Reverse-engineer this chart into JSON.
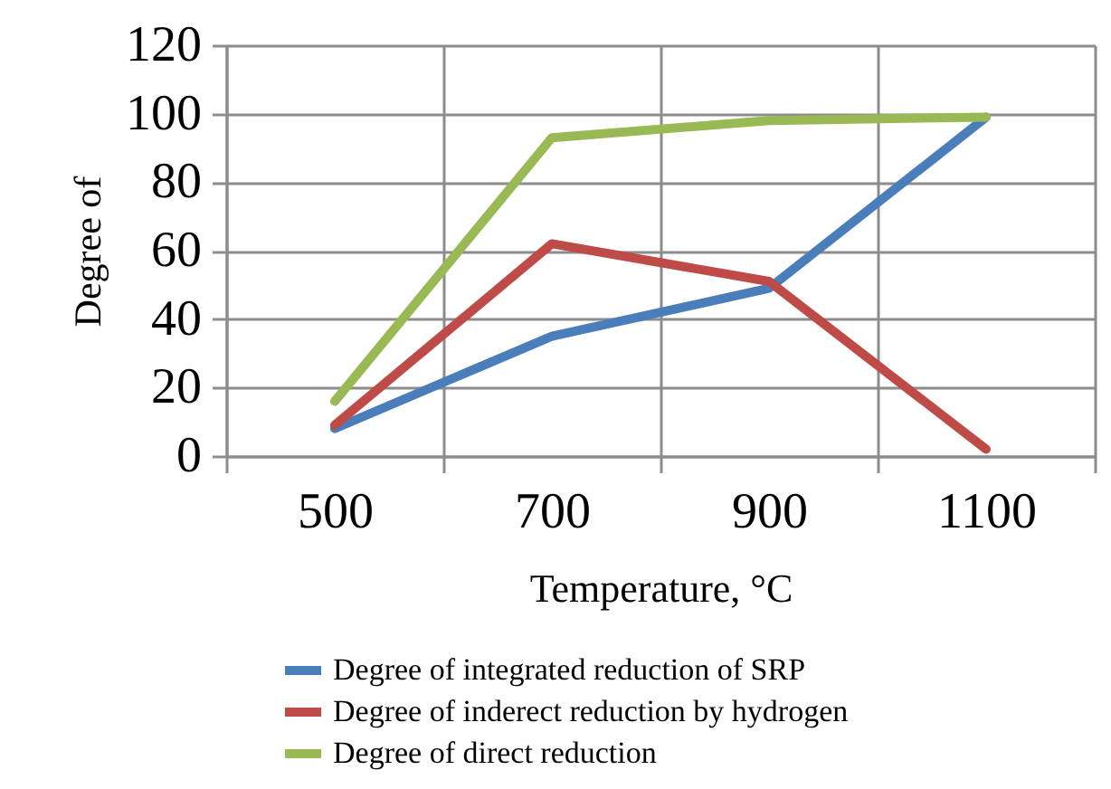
{
  "chart_data": {
    "type": "line",
    "xlabel": "Temperature, °C",
    "ylabel": "Degree of",
    "categories": [
      "500",
      "700",
      "900",
      "1100"
    ],
    "series": [
      {
        "name": "Degree of integrated reduction of SRP",
        "color": "#4a7ebb",
        "values": [
          8,
          35,
          49,
          99
        ]
      },
      {
        "name": "Degree of inderect reduction by hydrogen",
        "color": "#be4b48",
        "values": [
          9,
          62,
          51,
          2
        ]
      },
      {
        "name": "Degree of direct reduction",
        "color": "#98b954",
        "values": [
          16,
          93,
          98,
          99
        ]
      }
    ],
    "ylim": [
      0,
      120
    ],
    "yticks": [
      0,
      20,
      40,
      60,
      80,
      100,
      120
    ],
    "grid": true,
    "legend": "bottom",
    "marker": "none",
    "line_style": "solid"
  }
}
